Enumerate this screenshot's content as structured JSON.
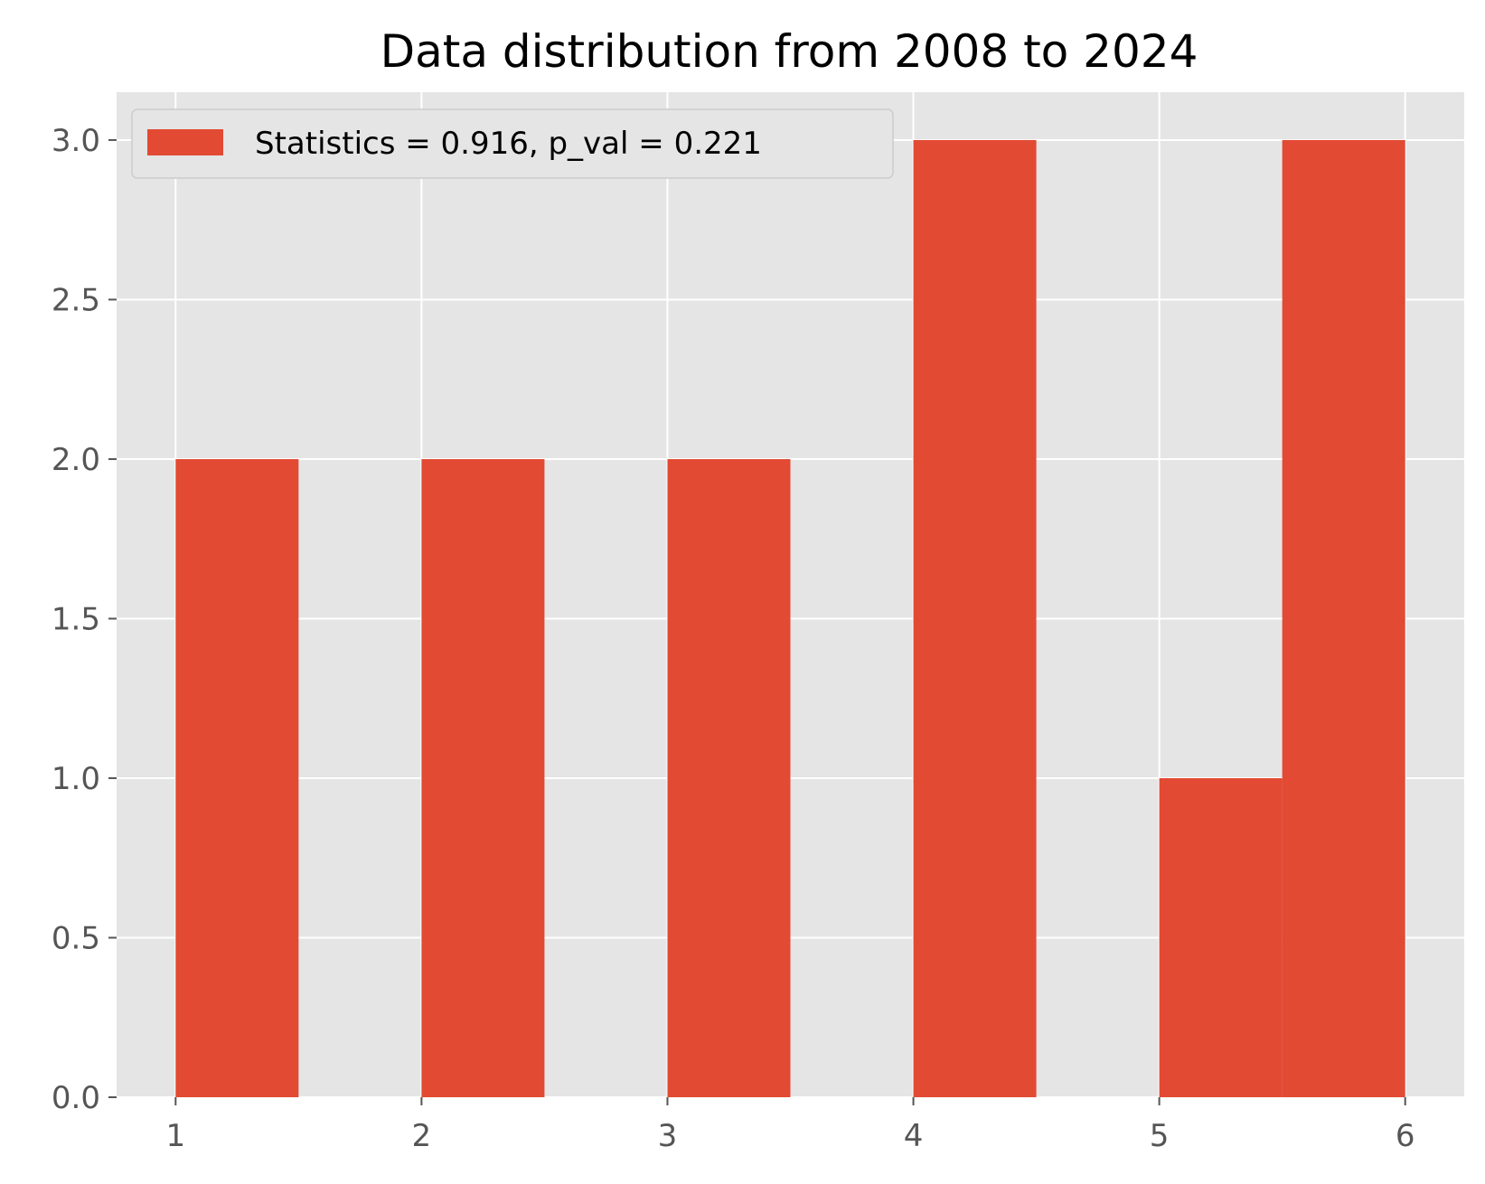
{
  "chart_data": {
    "type": "bar",
    "title": "Data distribution from 2008 to 2024",
    "xlabel": "",
    "ylabel": "",
    "bins": [
      {
        "x_start": 1.0,
        "x_end": 1.5,
        "count": 2
      },
      {
        "x_start": 1.5,
        "x_end": 2.0,
        "count": 0
      },
      {
        "x_start": 2.0,
        "x_end": 2.5,
        "count": 2
      },
      {
        "x_start": 2.5,
        "x_end": 3.0,
        "count": 0
      },
      {
        "x_start": 3.0,
        "x_end": 3.5,
        "count": 2
      },
      {
        "x_start": 3.5,
        "x_end": 4.0,
        "count": 0
      },
      {
        "x_start": 4.0,
        "x_end": 4.5,
        "count": 3
      },
      {
        "x_start": 4.5,
        "x_end": 5.0,
        "count": 0
      },
      {
        "x_start": 5.0,
        "x_end": 5.5,
        "count": 1
      },
      {
        "x_start": 5.5,
        "x_end": 6.0,
        "count": 3
      }
    ],
    "xlim": [
      0.76,
      6.24
    ],
    "ylim": [
      0,
      3.15
    ],
    "xticks": [
      "1",
      "2",
      "3",
      "4",
      "5",
      "6"
    ],
    "xtick_values": [
      1,
      2,
      3,
      4,
      5,
      6
    ],
    "yticks": [
      "0.0",
      "0.5",
      "1.0",
      "1.5",
      "2.0",
      "2.5",
      "3.0"
    ],
    "ytick_values": [
      0,
      0.5,
      1.0,
      1.5,
      2.0,
      2.5,
      3.0
    ],
    "series": [
      {
        "name": "Statistics = 0.916, p_val = 0.221",
        "color": "#E24A33"
      }
    ],
    "legend_position": "top-left",
    "grid": true,
    "style": "ggplot",
    "colors": {
      "plot_background": "#E5E5E5",
      "grid": "#FFFFFF",
      "bar": "#E24A33",
      "tick_text": "#555555"
    }
  }
}
